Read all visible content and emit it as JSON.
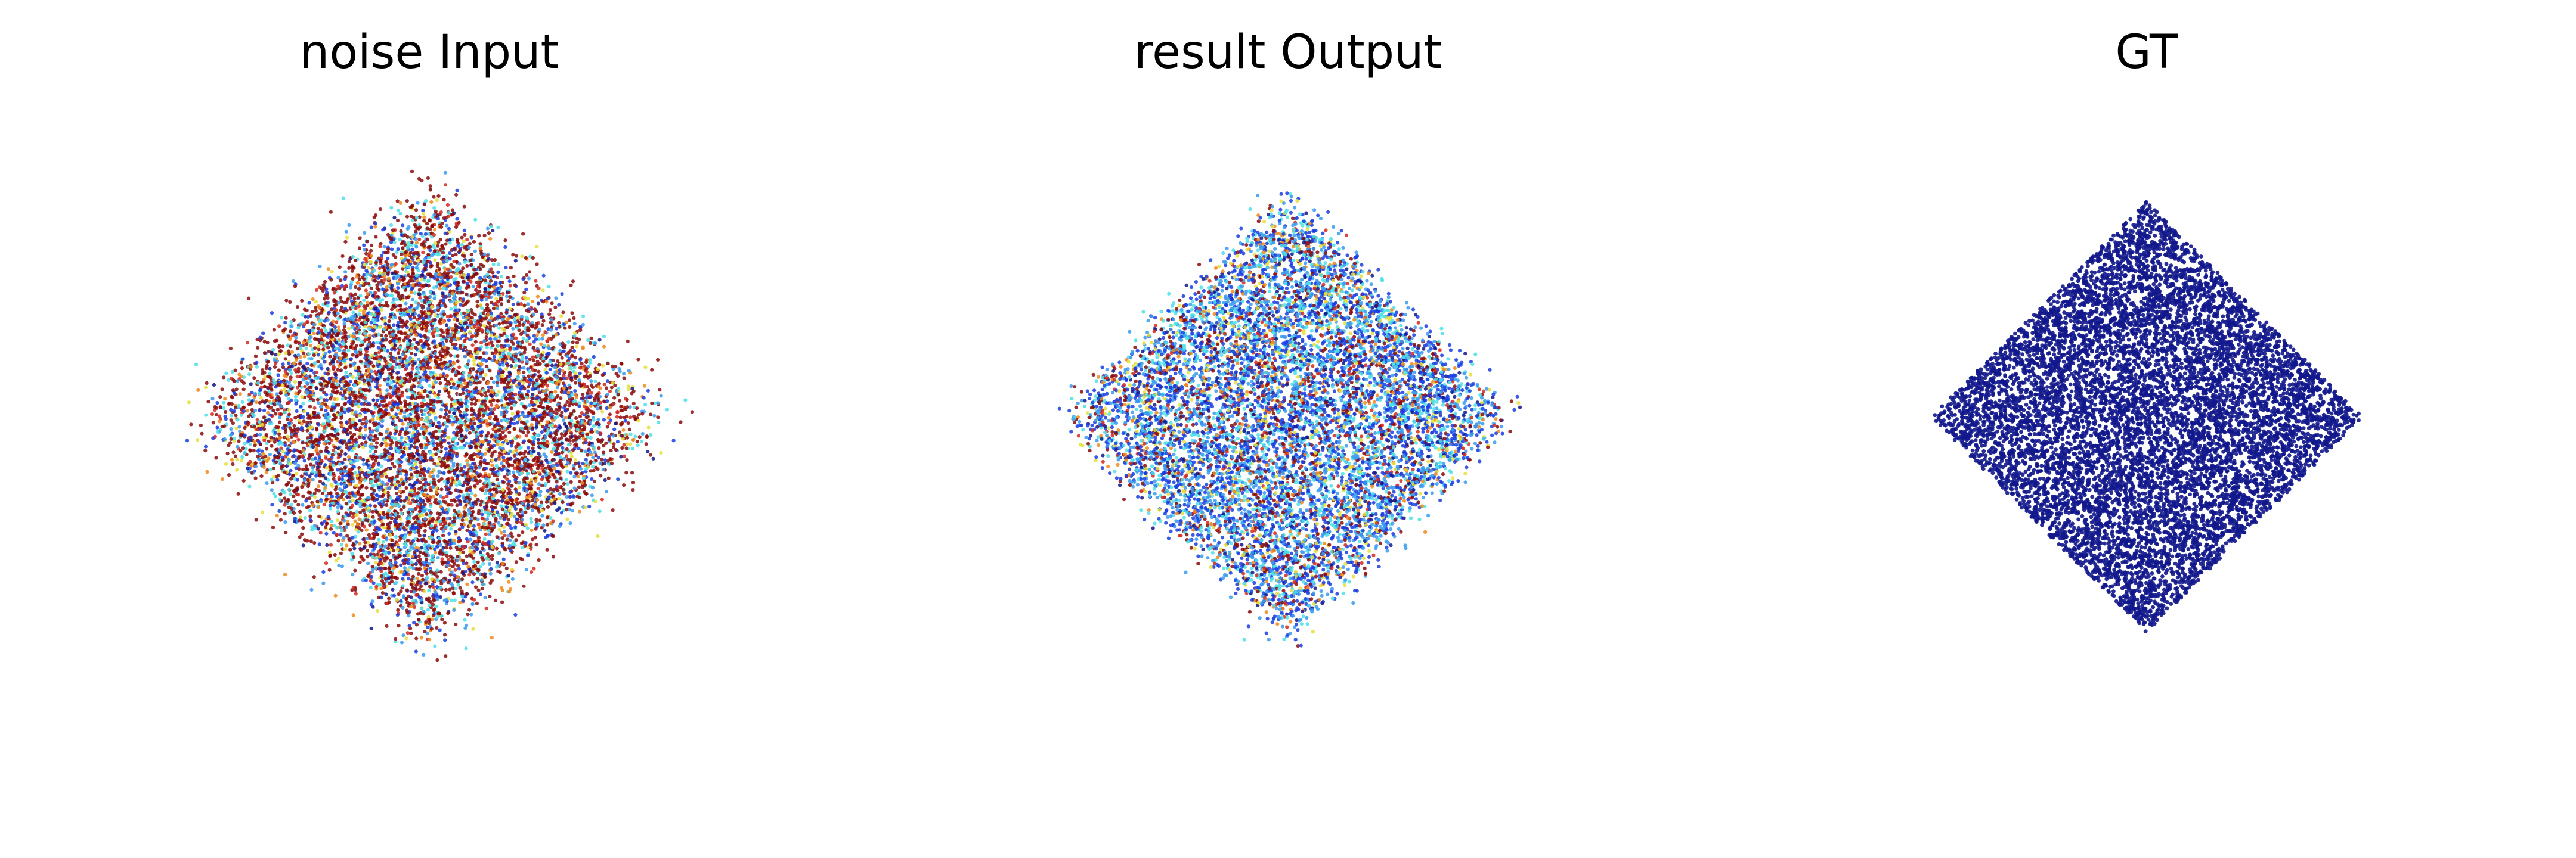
{
  "chart_data": [
    {
      "type": "scatter",
      "title": "noise Input",
      "shape": "diamond",
      "center": [
        0,
        0
      ],
      "half_extent": 1.0,
      "noise": 0.09,
      "point_count": 9000,
      "colormap": "jet",
      "color_weights": {
        "dark-red": 0.42,
        "red": 0.06,
        "orange": 0.07,
        "yellow": 0.06,
        "cyan": 0.12,
        "light-blue": 0.11,
        "blue": 0.12,
        "navy": 0.04
      },
      "xlim": [
        -1.3,
        1.3
      ],
      "ylim": [
        -1.3,
        1.3
      ],
      "grid": false,
      "axes_visible": false
    },
    {
      "type": "scatter",
      "title": "result Output",
      "shape": "diamond",
      "center": [
        0,
        0
      ],
      "half_extent": 1.0,
      "noise": 0.05,
      "point_count": 9000,
      "colormap": "jet",
      "color_weights": {
        "dark-red": 0.1,
        "red": 0.04,
        "orange": 0.05,
        "yellow": 0.06,
        "cyan": 0.16,
        "light-blue": 0.22,
        "blue": 0.3,
        "navy": 0.07
      },
      "xlim": [
        -1.3,
        1.3
      ],
      "ylim": [
        -1.3,
        1.3
      ],
      "grid": false,
      "axes_visible": false
    },
    {
      "type": "scatter",
      "title": "GT",
      "shape": "diamond",
      "center": [
        0,
        0
      ],
      "half_extent": 1.0,
      "noise": 0.0,
      "point_count": 9000,
      "colormap": "jet",
      "color_weights": {
        "navy": 1.0
      },
      "xlim": [
        -1.3,
        1.3
      ],
      "ylim": [
        -1.3,
        1.3
      ],
      "grid": false,
      "axes_visible": false
    }
  ],
  "palette": {
    "dark-red": "#8b0a0a",
    "red": "#d42a1e",
    "orange": "#f08a1c",
    "yellow": "#e6df3a",
    "cyan": "#4de0e6",
    "light-blue": "#3a9bf0",
    "blue": "#1a3de0",
    "navy": "#12188c",
    "background": "#ffffff",
    "text": "#000000"
  }
}
